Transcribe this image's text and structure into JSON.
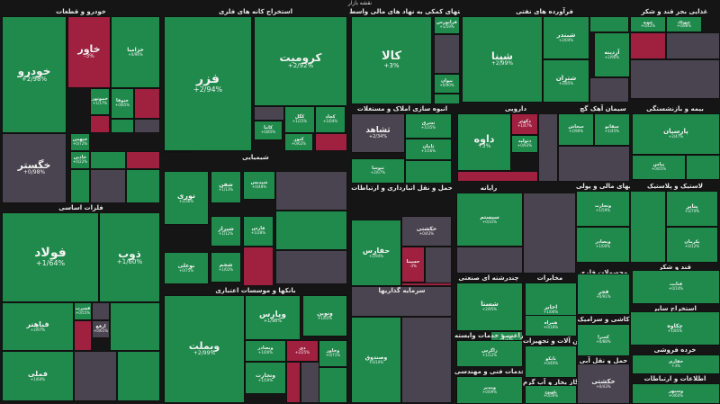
{
  "chart_data": {
    "type": "treemap",
    "title": "نقشه بازار",
    "colors": {
      "up": "#1f8a4c",
      "up_light": "#2a9a58",
      "down": "#a02040",
      "neutral": "#4a4450",
      "dark": "#3a3440"
    },
    "sectors": [
      {
        "name": "خودرو و قطعات",
        "stocks": [
          {
            "name": "خودرو",
            "change": "+2/98%",
            "dir": "up"
          },
          {
            "name": "خاور",
            "change": "-3%",
            "dir": "down"
          },
          {
            "name": "خزامیا",
            "change": "+0/94%",
            "dir": "up"
          },
          {
            "name": "خگستر",
            "change": "+0/98%",
            "dir": "neutral"
          },
          {
            "name": "خموتور",
            "change": "+1/17%",
            "dir": "up"
          },
          {
            "name": "ختوقا",
            "change": "+0/85%",
            "dir": "up"
          },
          {
            "name": "خبهمن",
            "change": "+0/72%",
            "dir": "up"
          },
          {
            "name": "خاذین",
            "change": "+0/22%",
            "dir": "up"
          }
        ]
      },
      {
        "name": "فلزات اساسی",
        "stocks": [
          {
            "name": "فولاد",
            "change": "+1/64%",
            "dir": "up"
          },
          {
            "name": "ذوب",
            "change": "+1/60%",
            "dir": "up"
          },
          {
            "name": "فباهنر",
            "change": "+2/97%",
            "dir": "up"
          },
          {
            "name": "فملی",
            "change": "+1/64%",
            "dir": "up"
          },
          {
            "name": "فسرب",
            "change": "+0/55%",
            "dir": "up"
          },
          {
            "name": "ارفع",
            "change": "+0/61%",
            "dir": "neutral"
          }
        ]
      },
      {
        "name": "استخراج کانه های فلزی",
        "stocks": [
          {
            "name": "فزر",
            "change": "+2/94%",
            "dir": "up"
          },
          {
            "name": "کرومیت",
            "change": "+2/92%",
            "dir": "up"
          },
          {
            "name": "کگل",
            "change": "+1/25%",
            "dir": "up"
          },
          {
            "name": "کچاد",
            "change": "+1/04%",
            "dir": "up"
          },
          {
            "name": "کاما",
            "change": "+0/85%",
            "dir": "up"
          },
          {
            "name": "کنور",
            "change": "+0/62%",
            "dir": "up"
          }
        ]
      },
      {
        "name": "فعالیتهای کمکی به نهاد های مالی واسط",
        "stocks": [
          {
            "name": "کالا",
            "change": "+3%",
            "dir": "up"
          },
          {
            "name": "فرابورس",
            "change": "+1/59%",
            "dir": "up"
          },
          {
            "name": "نیوان",
            "change": "+0/90%",
            "dir": "up"
          }
        ]
      },
      {
        "name": "فرآورده های نفتی",
        "stocks": [
          {
            "name": "شپنا",
            "change": "+2/99%",
            "dir": "up"
          },
          {
            "name": "شبندر",
            "change": "+2/04%",
            "dir": "up"
          },
          {
            "name": "شتران",
            "change": "+2/85%",
            "dir": "up"
          }
        ]
      },
      {
        "name": "غذایی بجز قند و شکر",
        "stocks": [
          {
            "name": "آردینه",
            "change": "+2/96%",
            "dir": "up"
          },
          {
            "name": "غپونه",
            "change": "+0/42%",
            "dir": "up"
          },
          {
            "name": "غبهپاک",
            "change": "+0/88%",
            "dir": "up"
          }
        ]
      },
      {
        "name": "انبوه سازی املاک و مستغلات",
        "stocks": [
          {
            "name": "ثشاهد",
            "change": "+2/34%",
            "dir": "neutral"
          },
          {
            "name": "ثشرق",
            "change": "+1/35%",
            "dir": "up"
          },
          {
            "name": "ثنوسا",
            "change": "+2/07%",
            "dir": "up"
          },
          {
            "name": "ثامان",
            "change": "+1/56%",
            "dir": "up"
          }
        ]
      },
      {
        "name": "دارویی",
        "stocks": [
          {
            "name": "داوه",
            "change": "+3%",
            "dir": "up"
          },
          {
            "name": "دکوثر",
            "change": "+1/47%",
            "dir": "down"
          },
          {
            "name": "دتولید",
            "change": "+0/93%",
            "dir": "up"
          }
        ]
      },
      {
        "name": "سیمان آهک گچ",
        "stocks": [
          {
            "name": "سخاش",
            "change": "+2/96%",
            "dir": "up"
          },
          {
            "name": "سفانو",
            "change": "+1/45%",
            "dir": "up"
          }
        ]
      },
      {
        "name": "بیمه و بازنشستگی",
        "stocks": [
          {
            "name": "پارسیان",
            "change": "+2/47%",
            "dir": "up"
          },
          {
            "name": "بیاس",
            "change": "+0/65%",
            "dir": "up"
          }
        ]
      },
      {
        "name": "شیمیایی",
        "stocks": [
          {
            "name": "نوری",
            "change": "+2/36%",
            "dir": "up"
          },
          {
            "name": "شفن",
            "change": "+1/13%",
            "dir": "up"
          },
          {
            "name": "شیراز",
            "change": "+1/12%",
            "dir": "up"
          },
          {
            "name": "شپدیس",
            "change": "+0/48%",
            "dir": "up"
          },
          {
            "name": "بوعلی",
            "change": "+0/75%",
            "dir": "up"
          },
          {
            "name": "شجم",
            "change": "+1/02%",
            "dir": "up"
          },
          {
            "name": "فارس",
            "change": "+1/28%",
            "dir": "up"
          }
        ]
      },
      {
        "name": "حمل و نقل انبارداری و ارتباطات",
        "stocks": [
          {
            "name": "حفارس",
            "change": "+2/94%",
            "dir": "up"
          },
          {
            "name": "حکشتی",
            "change": "+0/43%",
            "dir": "neutral"
          },
          {
            "name": "حسینا",
            "change": "-3%",
            "dir": "down"
          }
        ]
      },
      {
        "name": "رایانه",
        "stocks": [
          {
            "name": "سیستم",
            "change": "+0/31%",
            "dir": "up"
          }
        ]
      },
      {
        "name": "واسطه گریهای مالی و پولی",
        "stocks": [
          {
            "name": "وتجارت",
            "change": "+1/59%",
            "dir": "up"
          },
          {
            "name": "وبصادر",
            "change": "+1/00%",
            "dir": "up"
          }
        ]
      },
      {
        "name": "لاستیک و پلاستیک",
        "stocks": [
          {
            "name": "پتایر",
            "change": "+2/70%",
            "dir": "up"
          },
          {
            "name": "پکرمان",
            "change": "+0/12%",
            "dir": "up"
          }
        ]
      },
      {
        "name": "بانکها و موسسات اعتباری",
        "stocks": [
          {
            "name": "وبملت",
            "change": "+2/99%",
            "dir": "up"
          },
          {
            "name": "وپارس",
            "change": "+1/98%",
            "dir": "up"
          },
          {
            "name": "ونوین",
            "change": "+1/65%",
            "dir": "up"
          },
          {
            "name": "دی",
            "change": "+2/25%",
            "dir": "down"
          },
          {
            "name": "وبصادر",
            "change": "+1/00%",
            "dir": "up"
          },
          {
            "name": "وتجارت",
            "change": "+1/59%",
            "dir": "up"
          },
          {
            "name": "وخاور",
            "change": "+0/71%",
            "dir": "up"
          }
        ]
      },
      {
        "name": "سرمایه گذاریها",
        "stocks": [
          {
            "name": "وصندوق",
            "change": "+0/10%",
            "dir": "up"
          }
        ]
      },
      {
        "name": "چندرشته ای صنعتی",
        "stocks": [
          {
            "name": "شستا",
            "change": "+2/95%",
            "dir": "up"
          },
          {
            "name": "وصنا",
            "change": "+1/47%",
            "dir": "up"
          }
        ]
      },
      {
        "name": "مخابرات",
        "stocks": [
          {
            "name": "اخابر",
            "change": "+1/06%",
            "dir": "up"
          },
          {
            "name": "همراه",
            "change": "+0/18%",
            "dir": "up"
          }
        ]
      },
      {
        "name": "محصولات فلزی",
        "stocks": [
          {
            "name": "فجر",
            "change": "+0/91%",
            "dir": "up"
          }
        ]
      },
      {
        "name": "قند و شکر",
        "stocks": [
          {
            "name": "قثابت",
            "change": "+0/14%",
            "dir": "up"
          }
        ]
      },
      {
        "name": "کاشی و سرامیک",
        "stocks": [
          {
            "name": "کسرا",
            "change": "+0/88%",
            "dir": "up"
          }
        ]
      },
      {
        "name": "استخراج سایر",
        "stocks": [
          {
            "name": "چکاوه",
            "change": "+1/85%",
            "dir": "up"
          }
        ]
      },
      {
        "name": "ماشین آلات و تجهیزات",
        "stocks": [
          {
            "name": "تاپکو",
            "change": "+0/40%",
            "dir": "up"
          }
        ]
      },
      {
        "name": "حمل و نقل آبی",
        "stocks": [
          {
            "name": "حکشتی",
            "change": "+0/43%",
            "dir": "neutral"
          }
        ]
      },
      {
        "name": "زراعت و خدمات وابسته",
        "stocks": [
          {
            "name": "زاگرس",
            "change": "+1/12%",
            "dir": "up"
          }
        ]
      },
      {
        "name": "عرضه برق گاز بخار و آب گرم",
        "stocks": [
          {
            "name": "بکهنوج",
            "change": "+0/56%",
            "dir": "up"
          }
        ]
      },
      {
        "name": "خرده فروشی",
        "stocks": [
          {
            "name": "حفاری",
            "change": "+3%",
            "dir": "up"
          }
        ]
      },
      {
        "name": "اطلاعات و ارتباطات",
        "stocks": [
          {
            "name": "وسپهر",
            "change": "+0/60%",
            "dir": "up"
          }
        ]
      },
      {
        "name": "خدمات فنی و مهندسی",
        "stocks": [
          {
            "name": "ومدیر",
            "change": "+0/09%",
            "dir": "up"
          }
        ]
      },
      {
        "name": "حمل و نقل",
        "stocks": [
          {
            "name": "حتاید",
            "change": "+0/17%",
            "dir": "up"
          }
        ]
      }
    ]
  }
}
